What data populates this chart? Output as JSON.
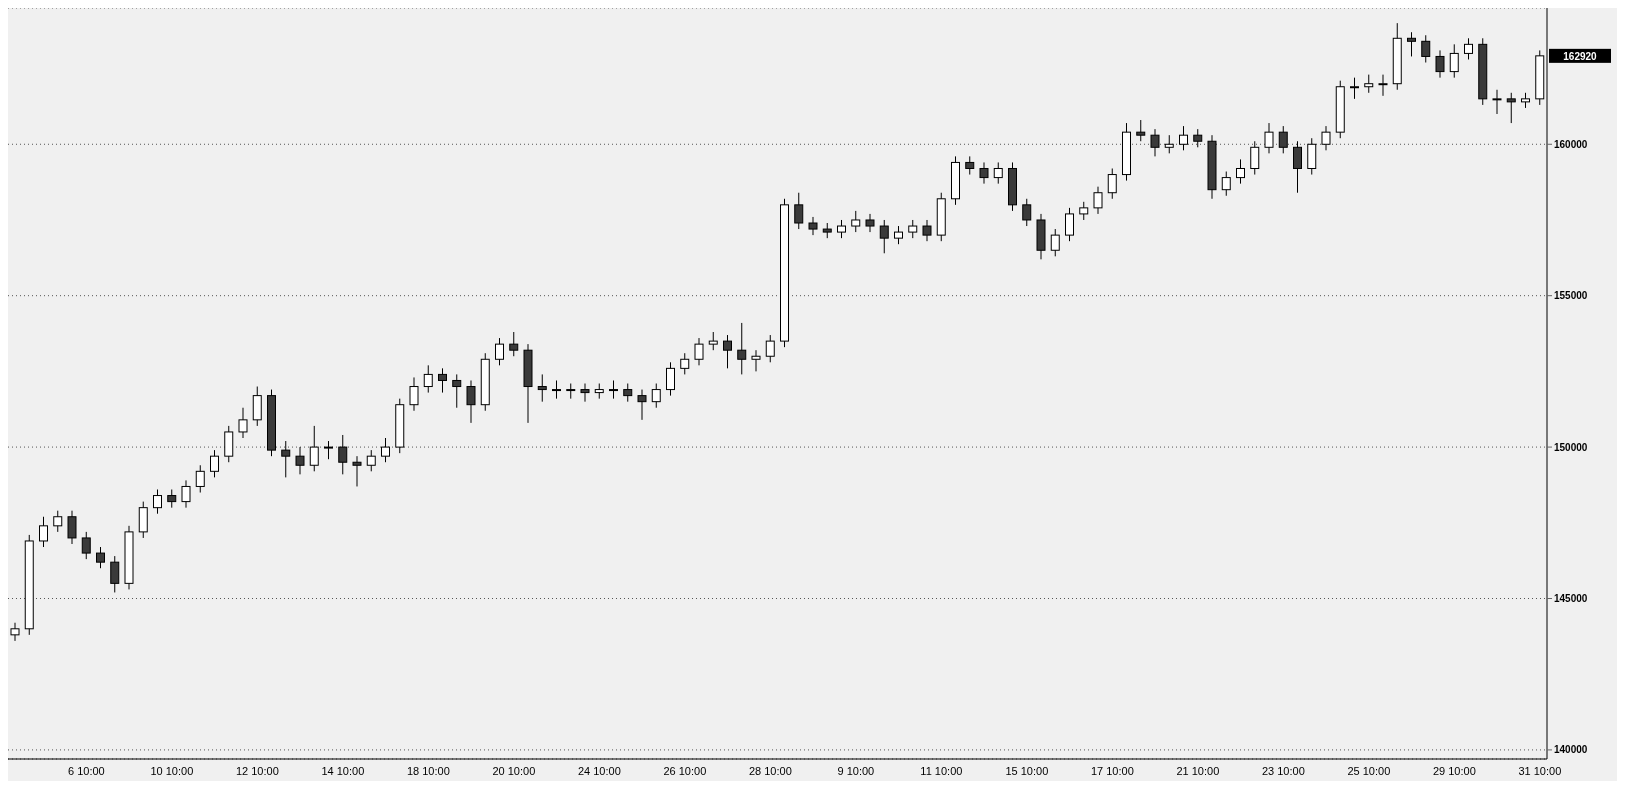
{
  "chart_data": {
    "type": "candlestick",
    "categories": [
      null,
      null,
      null,
      null,
      null,
      "6 10:00",
      null,
      null,
      null,
      null,
      null,
      "10 10:00",
      null,
      null,
      null,
      null,
      null,
      "12 10:00",
      null,
      null,
      null,
      null,
      null,
      "14 10:00",
      null,
      null,
      null,
      null,
      null,
      "18 10:00",
      null,
      null,
      null,
      null,
      null,
      "20 10:00",
      null,
      null,
      null,
      null,
      null,
      "24 10:00",
      null,
      null,
      null,
      null,
      null,
      "26 10:00",
      null,
      null,
      null,
      null,
      null,
      "28 10:00",
      null,
      null,
      null,
      null,
      null,
      "9 10:00",
      null,
      null,
      null,
      null,
      null,
      "11 10:00",
      null,
      null,
      null,
      null,
      null,
      "15 10:00",
      null,
      null,
      null,
      null,
      null,
      "17 10:00",
      null,
      null,
      null,
      null,
      null,
      "21 10:00",
      null,
      null,
      null,
      null,
      null,
      "23 10:00",
      null,
      null,
      null,
      null,
      null,
      "25 10:00",
      null,
      null,
      null,
      null,
      null,
      "29 10:00",
      null,
      null,
      null,
      null,
      null,
      "31 10:00"
    ],
    "ohlc": [
      [
        143800,
        144200,
        143600,
        144000
      ],
      [
        144000,
        147100,
        143800,
        146900
      ],
      [
        146900,
        147700,
        146700,
        147400
      ],
      [
        147400,
        147900,
        147200,
        147700
      ],
      [
        147700,
        147900,
        146800,
        147000
      ],
      [
        147000,
        147200,
        146300,
        146500
      ],
      [
        146500,
        146700,
        146000,
        146200
      ],
      [
        146200,
        146400,
        145200,
        145500
      ],
      [
        145500,
        147400,
        145300,
        147200
      ],
      [
        147200,
        148200,
        147000,
        148000
      ],
      [
        148000,
        148600,
        147800,
        148400
      ],
      [
        148400,
        148600,
        148000,
        148200
      ],
      [
        148200,
        148900,
        148000,
        148700
      ],
      [
        148700,
        149400,
        148500,
        149200
      ],
      [
        149200,
        149900,
        149000,
        149700
      ],
      [
        149700,
        150700,
        149500,
        150500
      ],
      [
        150500,
        151300,
        150300,
        150900
      ],
      [
        150900,
        152000,
        150700,
        151700
      ],
      [
        151700,
        151900,
        149700,
        149900
      ],
      [
        149900,
        150200,
        149000,
        149700
      ],
      [
        149700,
        150000,
        149100,
        149400
      ],
      [
        149400,
        150700,
        149200,
        150000
      ],
      [
        150000,
        150200,
        149600,
        150000
      ],
      [
        150000,
        150400,
        149100,
        149500
      ],
      [
        149500,
        149700,
        148700,
        149400
      ],
      [
        149400,
        149900,
        149200,
        149700
      ],
      [
        149700,
        150300,
        149500,
        150000
      ],
      [
        150000,
        151600,
        149800,
        151400
      ],
      [
        151400,
        152300,
        151200,
        152000
      ],
      [
        152000,
        152700,
        151800,
        152400
      ],
      [
        152400,
        152600,
        151800,
        152200
      ],
      [
        152200,
        152400,
        151300,
        152000
      ],
      [
        152000,
        152200,
        150800,
        151400
      ],
      [
        151400,
        153100,
        151200,
        152900
      ],
      [
        152900,
        153600,
        152700,
        153400
      ],
      [
        153400,
        153800,
        153000,
        153200
      ],
      [
        153200,
        153400,
        150800,
        152000
      ],
      [
        152000,
        152400,
        151500,
        151900
      ],
      [
        151900,
        152200,
        151600,
        151900
      ],
      [
        151900,
        152100,
        151600,
        151900
      ],
      [
        151900,
        152100,
        151500,
        151800
      ],
      [
        151800,
        152100,
        151600,
        151900
      ],
      [
        151900,
        152200,
        151600,
        151900
      ],
      [
        151900,
        152100,
        151500,
        151700
      ],
      [
        151700,
        151900,
        150900,
        151500
      ],
      [
        151500,
        152100,
        151300,
        151900
      ],
      [
        151900,
        152800,
        151700,
        152600
      ],
      [
        152600,
        153100,
        152400,
        152900
      ],
      [
        152900,
        153600,
        152700,
        153400
      ],
      [
        153400,
        153800,
        153200,
        153500
      ],
      [
        153500,
        153700,
        152600,
        153200
      ],
      [
        153200,
        154100,
        152400,
        152900
      ],
      [
        152900,
        153200,
        152500,
        153000
      ],
      [
        153000,
        153700,
        152800,
        153500
      ],
      [
        153500,
        158200,
        153300,
        158000
      ],
      [
        158000,
        158400,
        157200,
        157400
      ],
      [
        157400,
        157600,
        157000,
        157200
      ],
      [
        157200,
        157400,
        156900,
        157100
      ],
      [
        157100,
        157500,
        156900,
        157300
      ],
      [
        157300,
        157800,
        157100,
        157500
      ],
      [
        157500,
        157700,
        157100,
        157300
      ],
      [
        157300,
        157500,
        156400,
        156900
      ],
      [
        156900,
        157300,
        156700,
        157100
      ],
      [
        157100,
        157500,
        156900,
        157300
      ],
      [
        157300,
        157500,
        156800,
        157000
      ],
      [
        157000,
        158400,
        156800,
        158200
      ],
      [
        158200,
        159600,
        158000,
        159400
      ],
      [
        159400,
        159600,
        159000,
        159200
      ],
      [
        159200,
        159400,
        158700,
        158900
      ],
      [
        158900,
        159400,
        158700,
        159200
      ],
      [
        159200,
        159400,
        157800,
        158000
      ],
      [
        158000,
        158200,
        157300,
        157500
      ],
      [
        157500,
        157700,
        156200,
        156500
      ],
      [
        156500,
        157200,
        156300,
        157000
      ],
      [
        157000,
        157900,
        156800,
        157700
      ],
      [
        157700,
        158100,
        157500,
        157900
      ],
      [
        157900,
        158600,
        157700,
        158400
      ],
      [
        158400,
        159200,
        158200,
        159000
      ],
      [
        159000,
        160700,
        158800,
        160400
      ],
      [
        160400,
        160800,
        160100,
        160300
      ],
      [
        160300,
        160500,
        159600,
        159900
      ],
      [
        159900,
        160300,
        159700,
        160000
      ],
      [
        160000,
        160600,
        159800,
        160300
      ],
      [
        160300,
        160500,
        159900,
        160100
      ],
      [
        160100,
        160300,
        158200,
        158500
      ],
      [
        158500,
        159100,
        158300,
        158900
      ],
      [
        158900,
        159500,
        158700,
        159200
      ],
      [
        159200,
        160100,
        159000,
        159900
      ],
      [
        159900,
        160700,
        159700,
        160400
      ],
      [
        160400,
        160600,
        159700,
        159900
      ],
      [
        159900,
        160100,
        158400,
        159200
      ],
      [
        159200,
        160200,
        159000,
        160000
      ],
      [
        160000,
        160600,
        159800,
        160400
      ],
      [
        160400,
        162100,
        160200,
        161900
      ],
      [
        161900,
        162200,
        161500,
        161900
      ],
      [
        161900,
        162300,
        161700,
        162000
      ],
      [
        162000,
        162300,
        161600,
        162000
      ],
      [
        162000,
        164000,
        161800,
        163500
      ],
      [
        163500,
        163700,
        162900,
        163400
      ],
      [
        163400,
        163600,
        162700,
        162900
      ],
      [
        162900,
        163100,
        162200,
        162400
      ],
      [
        162400,
        163300,
        162200,
        163000
      ],
      [
        163000,
        163500,
        162800,
        163300
      ],
      [
        163300,
        163500,
        161300,
        161500
      ],
      [
        161500,
        161800,
        161000,
        161500
      ],
      [
        161500,
        161700,
        160700,
        161400
      ],
      [
        161400,
        161700,
        161200,
        161500
      ],
      [
        161500,
        163100,
        161300,
        162920
      ]
    ],
    "ylim": [
      139700,
      164500
    ],
    "yticks": [
      140000,
      145000,
      150000,
      155000,
      160000
    ],
    "grid": "y",
    "annotations": [
      "162920"
    ]
  }
}
